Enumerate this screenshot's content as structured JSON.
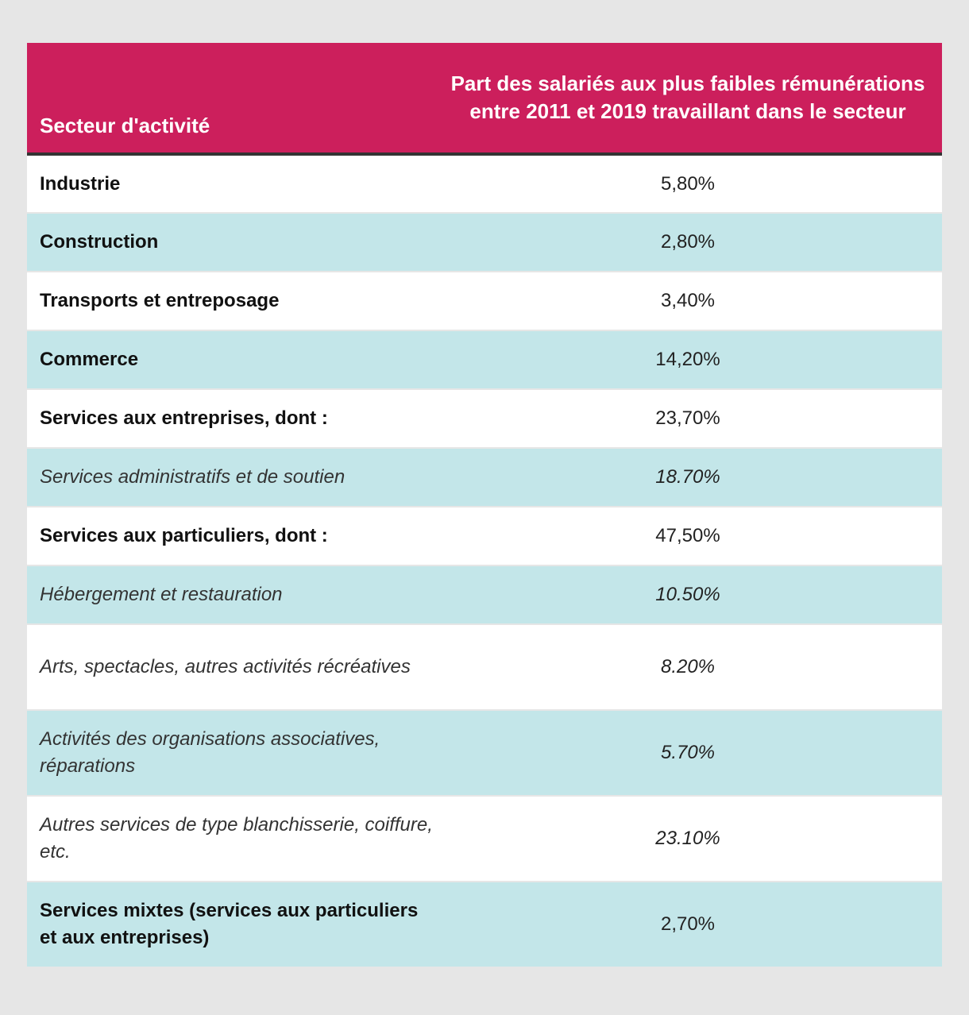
{
  "header": {
    "sector_label": "Secteur d'activité",
    "share_label": "Part des salariés aux plus faibles rémunérations entre 2011 et 2019 travaillant dans le secteur"
  },
  "rows": [
    {
      "sector": "Industrie",
      "value": "5,80%"
    },
    {
      "sector": "Construction",
      "value": "2,80%"
    },
    {
      "sector": "Transports et entreposage",
      "value": "3,40%"
    },
    {
      "sector": "Commerce",
      "value": "14,20%"
    },
    {
      "sector": "Services aux entreprises, dont :",
      "value": "23,70%"
    },
    {
      "sector": "Services administratifs et de soutien",
      "value": "18.70%"
    },
    {
      "sector": "Services aux particuliers, dont :",
      "value": "47,50%"
    },
    {
      "sector": "Hébergement et restauration",
      "value": "10.50%"
    },
    {
      "sector": "Arts, spectacles, autres activités récréatives",
      "value": "8.20%"
    },
    {
      "sector": "Activités des organisations associatives, réparations",
      "value": "5.70%"
    },
    {
      "sector": "Autres services de type blanchisserie, coiffure, etc.",
      "value": "23.10%"
    },
    {
      "sector": "Services mixtes (services aux particuliers et aux entreprises)",
      "value": "2,70%"
    }
  ],
  "colors": {
    "header_bg": "#cc1f5c",
    "row_alt_bg": "#c3e6e9",
    "page_bg": "#e6e6e6"
  }
}
